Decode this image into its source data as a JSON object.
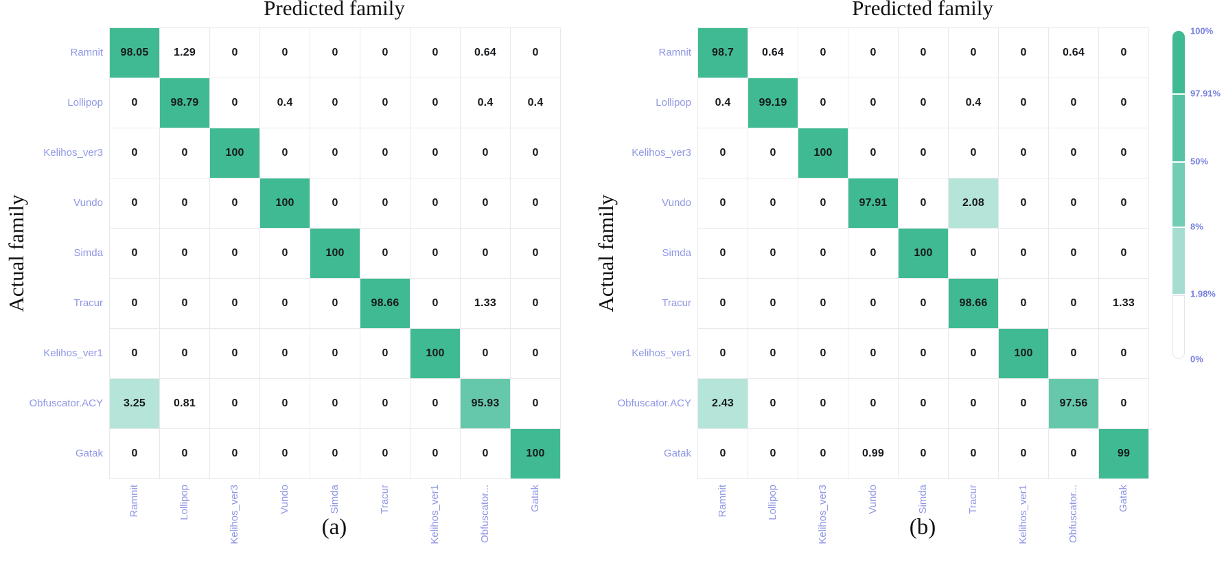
{
  "figure": {
    "background": "#ffffff",
    "value_text_color": "#17191c",
    "grid_line_color": "#e8e9ed",
    "axis_label_color": "#8f97e6",
    "title_color": "#111111"
  },
  "chart_data": [
    {
      "type": "heatmap",
      "title": "Predicted family",
      "xlabel": "Predicted family",
      "ylabel": "Actual family",
      "caption": "(a)",
      "x_categories": [
        "Ramnit",
        "Lollipop",
        "Kelihos_ver3",
        "Vundo",
        "Simda",
        "Tracur",
        "Kelihos_ver1",
        "Obfuscator...",
        "Gatak"
      ],
      "y_categories": [
        "Ramnit",
        "Lollipop",
        "Kelihos_ver3",
        "Vundo",
        "Simda",
        "Tracur",
        "Kelihos_ver1",
        "Obfuscator.ACY",
        "Gatak"
      ],
      "values": [
        [
          98.05,
          1.29,
          0,
          0,
          0,
          0,
          0,
          0.64,
          0
        ],
        [
          0,
          98.79,
          0,
          0.4,
          0,
          0,
          0,
          0.4,
          0.4
        ],
        [
          0,
          0,
          100,
          0,
          0,
          0,
          0,
          0,
          0
        ],
        [
          0,
          0,
          0,
          100,
          0,
          0,
          0,
          0,
          0
        ],
        [
          0,
          0,
          0,
          0,
          100,
          0,
          0,
          0,
          0
        ],
        [
          0,
          0,
          0,
          0,
          0,
          98.66,
          0,
          1.33,
          0
        ],
        [
          0,
          0,
          0,
          0,
          0,
          0,
          100,
          0,
          0
        ],
        [
          3.25,
          0.81,
          0,
          0,
          0,
          0,
          0,
          95.93,
          0
        ],
        [
          0,
          0,
          0,
          0,
          0,
          0,
          0,
          0,
          100
        ]
      ]
    },
    {
      "type": "heatmap",
      "title": "Predicted family",
      "xlabel": "Predicted family",
      "ylabel": "Actual family",
      "caption": "(b)",
      "x_categories": [
        "Ramnit",
        "Lollipop",
        "Kelihos_ver3",
        "Vundo",
        "Simda",
        "Tracur",
        "Kelihos_ver1",
        "Obfuscator...",
        "Gatak"
      ],
      "y_categories": [
        "Ramnit",
        "Lollipop",
        "Kelihos_ver3",
        "Vundo",
        "Simda",
        "Tracur",
        "Kelihos_ver1",
        "Obfuscator.ACY",
        "Gatak"
      ],
      "values": [
        [
          98.7,
          0.64,
          0,
          0,
          0,
          0,
          0,
          0.64,
          0
        ],
        [
          0.4,
          99.19,
          0,
          0,
          0,
          0.4,
          0,
          0,
          0
        ],
        [
          0,
          0,
          100,
          0,
          0,
          0,
          0,
          0,
          0
        ],
        [
          0,
          0,
          0,
          97.91,
          0,
          2.08,
          0,
          0,
          0
        ],
        [
          0,
          0,
          0,
          0,
          100,
          0,
          0,
          0,
          0
        ],
        [
          0,
          0,
          0,
          0,
          0,
          98.66,
          0,
          0,
          1.33
        ],
        [
          0,
          0,
          0,
          0,
          0,
          0,
          100,
          0,
          0
        ],
        [
          2.43,
          0,
          0,
          0,
          0,
          0,
          0,
          97.56,
          0
        ],
        [
          0,
          0,
          0,
          0.99,
          0,
          0,
          0,
          0,
          99
        ]
      ]
    }
  ],
  "legend": {
    "tick_labels": [
      "100%",
      "97.91%",
      "50%",
      "8%",
      "1.98%",
      "0%"
    ],
    "segment_colors": [
      "#3fba92",
      "#55c2a3",
      "#73ccb4",
      "#a5ddd0",
      "#ffffff"
    ],
    "tick_color": "#7780e0"
  },
  "color_scale": {
    "thresholds": [
      97.91,
      50,
      8,
      1.98
    ],
    "bucket_colors": [
      "#3fba92",
      "#66c8ab",
      "#7fd1bc",
      "#b5e4d8",
      "#ffffff"
    ]
  }
}
